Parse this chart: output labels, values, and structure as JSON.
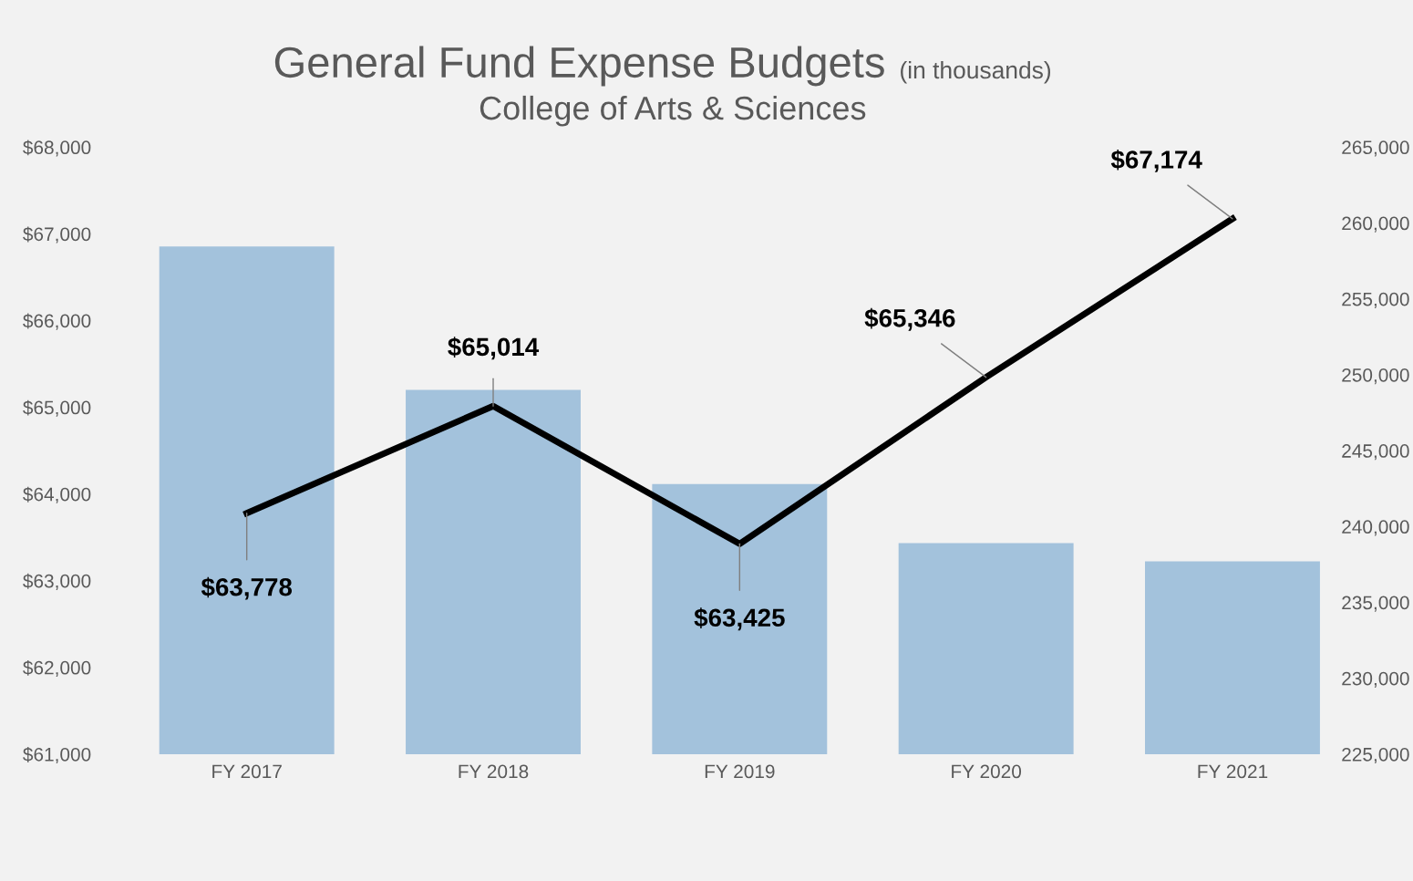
{
  "chart_data": {
    "type": "bar",
    "title": "General Fund Expense Budgets",
    "subtitle": "College of Arts & Sciences",
    "annotations": [
      "(in thousands)"
    ],
    "categories": [
      "FY 2017",
      "FY 2018",
      "FY 2019",
      "FY 2020",
      "FY 2021"
    ],
    "series": [
      {
        "axis": "y2",
        "color": "#a3c2dc",
        "values": [
          258450,
          249000,
          242800,
          238900,
          237700
        ]
      },
      {
        "type": "line",
        "color": "#000000",
        "values": [
          63778,
          65014,
          63425,
          65346,
          67174
        ],
        "value_labels": [
          "$63,778",
          "$65,014",
          "$63,425",
          "$65,346",
          "$67,174"
        ]
      }
    ],
    "ylim": [
      61000,
      68000
    ],
    "yticks": [
      {
        "value": 61000,
        "label": "$61,000"
      },
      {
        "value": 62000,
        "label": "$62,000"
      },
      {
        "value": 63000,
        "label": "$63,000"
      },
      {
        "value": 64000,
        "label": "$64,000"
      },
      {
        "value": 65000,
        "label": "$65,000"
      },
      {
        "value": 66000,
        "label": "$66,000"
      },
      {
        "value": 67000,
        "label": "$67,000"
      },
      {
        "value": 68000,
        "label": "$68,000"
      }
    ],
    "y2lim": [
      225000,
      265000
    ],
    "y2ticks": [
      {
        "value": 225000,
        "label": "225,000"
      },
      {
        "value": 230000,
        "label": "230,000"
      },
      {
        "value": 235000,
        "label": "235,000"
      },
      {
        "value": 240000,
        "label": "240,000"
      },
      {
        "value": 245000,
        "label": "245,000"
      },
      {
        "value": 250000,
        "label": "250,000"
      },
      {
        "value": 255000,
        "label": "255,000"
      },
      {
        "value": 260000,
        "label": "260,000"
      },
      {
        "value": 265000,
        "label": "265,000"
      }
    ],
    "grid": false,
    "legend": false,
    "marker": "none",
    "line_style": "solid"
  }
}
